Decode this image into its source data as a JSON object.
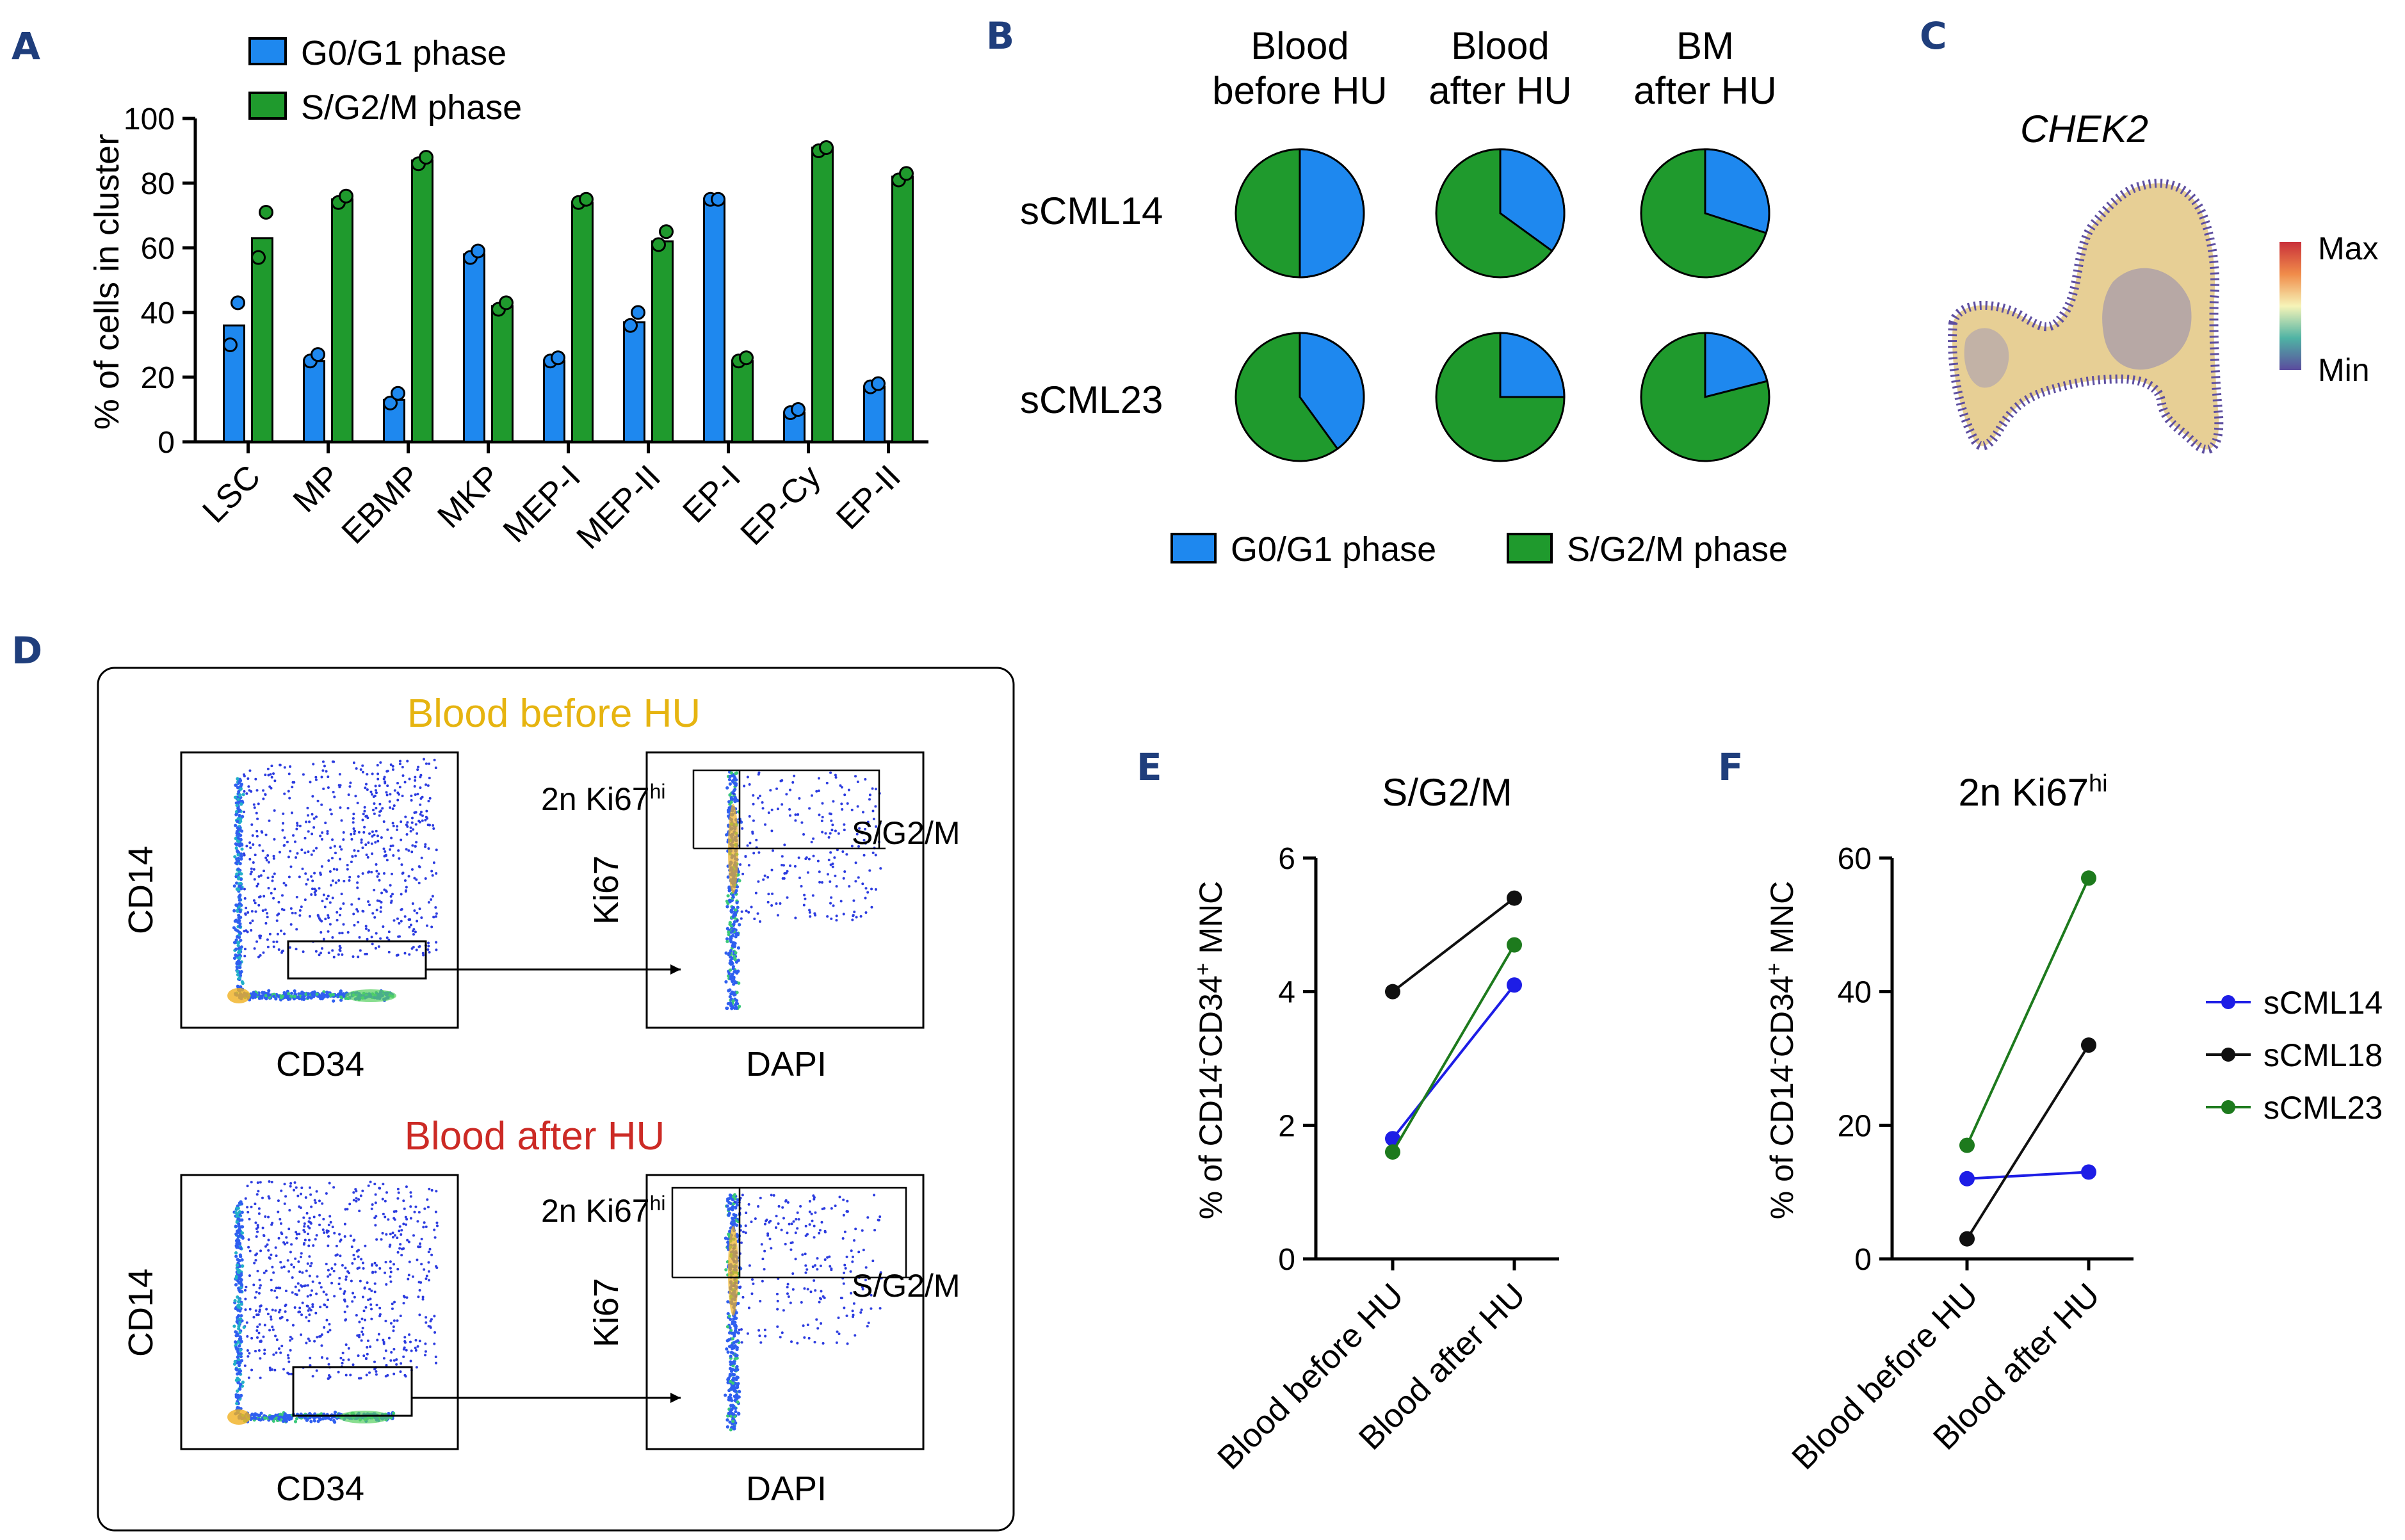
{
  "colors": {
    "blue": "#1e88ef",
    "green": "#1f9a2d",
    "panel_letter": "#1f3e7c",
    "gold": "#e6b410",
    "red": "#cc2a25",
    "scml14": "#1d1de6",
    "scml18": "#101010",
    "scml23": "#1d7a1d"
  },
  "panels": {
    "a": "A",
    "b": "B",
    "c": "C",
    "d": "D",
    "e": "E",
    "f": "F"
  },
  "chart_data": [
    {
      "panel": "A",
      "type": "bar",
      "ylabel": "% of cells in cluster",
      "ylim": [
        0,
        100
      ],
      "yticks": [
        "0",
        "20",
        "40",
        "60",
        "80",
        "100"
      ],
      "categories": [
        "LSC",
        "MP",
        "EBMP",
        "MKP",
        "MEP-I",
        "MEP-II",
        "EP-I",
        "EP-Cy",
        "EP-II"
      ],
      "legend": [
        "G0/G1 phase",
        "S/G2/M phase"
      ],
      "series": [
        {
          "name": "G0/G1 phase",
          "values": [
            36,
            25,
            13,
            58,
            25,
            37,
            75,
            9,
            17
          ],
          "points": [
            [
              30,
              43
            ],
            [
              25,
              27
            ],
            [
              12,
              15
            ],
            [
              57,
              59
            ],
            [
              25,
              26
            ],
            [
              36,
              40
            ],
            [
              75,
              75
            ],
            [
              9,
              10
            ],
            [
              17,
              18
            ]
          ]
        },
        {
          "name": "S/G2/M phase",
          "values": [
            63,
            75,
            87,
            42,
            74,
            62,
            25,
            91,
            82
          ],
          "points": [
            [
              57,
              71
            ],
            [
              74,
              76
            ],
            [
              86,
              88
            ],
            [
              41,
              43
            ],
            [
              74,
              75
            ],
            [
              61,
              65
            ],
            [
              25,
              26
            ],
            [
              90,
              91
            ],
            [
              81,
              83
            ]
          ]
        }
      ]
    },
    {
      "panel": "B",
      "type": "pie",
      "columns": [
        [
          "Blood",
          "before HU"
        ],
        [
          "Blood",
          "after HU"
        ],
        [
          "BM",
          "after HU"
        ]
      ],
      "rows": [
        "sCML14",
        "sCML23"
      ],
      "legend": [
        "G0/G1 phase",
        "S/G2/M phase"
      ],
      "g0g1_fraction": [
        [
          0.5,
          0.35,
          0.3
        ],
        [
          0.4,
          0.25,
          0.21
        ]
      ]
    },
    {
      "panel": "E",
      "type": "line",
      "title": "S/G2/M",
      "ylabel": "% of CD14-CD34+ MNC",
      "ylabel_parts": [
        "% of CD14",
        "-",
        "CD34",
        "+",
        " MNC"
      ],
      "categories": [
        "Blood before HU",
        "Blood after HU"
      ],
      "ylim": [
        0,
        6
      ],
      "yticks": [
        "0",
        "2",
        "4",
        "6"
      ],
      "series": [
        {
          "name": "sCML14",
          "values": [
            1.8,
            4.1
          ]
        },
        {
          "name": "sCML18",
          "values": [
            4.0,
            5.4
          ]
        },
        {
          "name": "sCML23",
          "values": [
            1.6,
            4.7
          ]
        }
      ]
    },
    {
      "panel": "F",
      "type": "line",
      "title": "2n Ki67hi",
      "title_parts": [
        "2n Ki67",
        "hi"
      ],
      "ylabel": "% of CD14-CD34+ MNC",
      "ylabel_parts": [
        "% of CD14",
        "-",
        "CD34",
        "+",
        " MNC"
      ],
      "categories": [
        "Blood before HU",
        "Blood after HU"
      ],
      "ylim": [
        0,
        60
      ],
      "yticks": [
        "0",
        "20",
        "40",
        "60"
      ],
      "series": [
        {
          "name": "sCML14",
          "values": [
            12,
            13
          ]
        },
        {
          "name": "sCML18",
          "values": [
            3,
            32
          ]
        },
        {
          "name": "sCML23",
          "values": [
            17,
            57
          ]
        }
      ],
      "legend": [
        "sCML14",
        "sCML18",
        "sCML23"
      ]
    }
  ],
  "panel_c": {
    "gene": "CHEK2",
    "scale_max": "Max",
    "scale_min": "Min"
  },
  "panel_d": {
    "before_title": "Blood before HU",
    "after_title": "Blood after HU",
    "x_left": "CD34",
    "y_left": "CD14",
    "x_right": "DAPI",
    "y_right": "Ki67",
    "gate_ki67": "2n Ki67",
    "gate_ki67_sup": "hi",
    "gate_sg2m": "S/G2/M"
  }
}
